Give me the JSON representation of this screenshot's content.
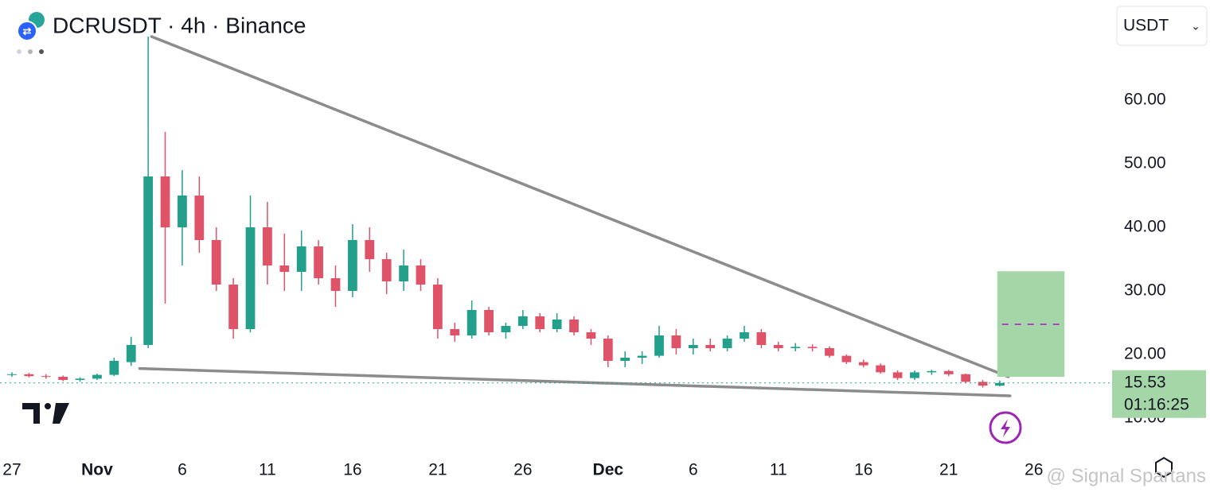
{
  "chart_data": {
    "type": "candlestick",
    "title": "DCRUSDT · 4h · Binance",
    "currency": "USDT",
    "countdown": "01:16:25",
    "watermark": "@ Signal Spartans",
    "up_color": "#22a08b",
    "down_color": "#de5368",
    "x": [
      0,
      1,
      2,
      3,
      4,
      5,
      6,
      7,
      8,
      9,
      10,
      11,
      12,
      13,
      14,
      15,
      16,
      17,
      18,
      19,
      20,
      21,
      22,
      23,
      24,
      25,
      26,
      27,
      28,
      29,
      30,
      31,
      32,
      33,
      34,
      35,
      36,
      37,
      38,
      39,
      40,
      41,
      42,
      43,
      44,
      45,
      46,
      47,
      48,
      49,
      50,
      51,
      52,
      53,
      54,
      55,
      56,
      57,
      58
    ],
    "open": [
      16.8,
      16.9,
      16.6,
      16.5,
      16.0,
      16.2,
      16.8,
      18.8,
      21.5,
      48.0,
      40.0,
      45.0,
      38.0,
      31.0,
      24.0,
      40.0,
      34.0,
      33.0,
      37.0,
      32.0,
      30.0,
      38.0,
      35.0,
      31.5,
      34.0,
      31.0,
      24.0,
      23.0,
      27.0,
      23.5,
      24.5,
      26.0,
      24.0,
      25.5,
      23.5,
      22.5,
      19.0,
      19.5,
      19.8,
      23.0,
      21.0,
      21.5,
      21.0,
      22.5,
      23.5,
      21.5,
      21.0,
      21.2,
      21.0,
      19.8,
      18.8,
      18.3,
      17.2,
      16.3,
      17.2,
      17.4,
      16.9,
      15.7,
      15.1
    ],
    "high": [
      17.2,
      17.1,
      16.9,
      16.7,
      16.4,
      17.0,
      19.5,
      22.8,
      70.0,
      55.0,
      49.0,
      48.0,
      40.0,
      32.0,
      45.0,
      44.0,
      39.0,
      39.5,
      38.0,
      34.0,
      40.5,
      40.0,
      36.0,
      36.5,
      35.0,
      32.0,
      25.0,
      28.5,
      27.5,
      25.0,
      27.0,
      26.5,
      26.5,
      26.0,
      24.0,
      23.0,
      20.5,
      20.5,
      24.5,
      24.0,
      22.5,
      22.5,
      23.0,
      24.5,
      24.0,
      22.0,
      21.8,
      21.6,
      21.3,
      20.0,
      19.2,
      18.6,
      17.5,
      17.5,
      17.6,
      17.6,
      17.0,
      16.0,
      15.9
    ],
    "low": [
      16.5,
      16.4,
      16.2,
      15.8,
      15.7,
      16.0,
      16.6,
      18.2,
      21.0,
      28.0,
      34.0,
      36.0,
      30.0,
      22.5,
      23.5,
      31.0,
      30.0,
      30.0,
      31.0,
      27.5,
      29.0,
      33.0,
      29.5,
      30.0,
      30.0,
      22.5,
      22.0,
      22.5,
      23.0,
      22.5,
      24.0,
      23.5,
      23.5,
      23.0,
      21.5,
      18.0,
      18.0,
      18.5,
      19.5,
      20.0,
      20.0,
      20.5,
      20.5,
      22.0,
      21.0,
      20.5,
      20.5,
      20.5,
      19.5,
      18.5,
      18.0,
      17.0,
      16.0,
      16.0,
      16.8,
      16.6,
      15.5,
      14.8,
      15.0
    ],
    "close": [
      16.9,
      16.6,
      16.5,
      16.0,
      16.2,
      16.8,
      19.0,
      21.5,
      48.0,
      40.0,
      45.0,
      38.0,
      31.0,
      24.0,
      40.0,
      34.0,
      33.0,
      37.0,
      32.0,
      30.0,
      38.0,
      35.0,
      31.5,
      34.0,
      31.0,
      24.0,
      23.0,
      27.0,
      23.5,
      24.5,
      26.0,
      24.0,
      25.5,
      23.5,
      22.5,
      19.0,
      19.5,
      19.8,
      23.0,
      21.0,
      21.5,
      21.0,
      22.5,
      23.5,
      21.5,
      21.0,
      21.2,
      21.0,
      19.8,
      18.8,
      18.3,
      17.2,
      16.3,
      17.2,
      17.4,
      16.9,
      15.7,
      15.1,
      15.53
    ],
    "xlim": [
      -0.7,
      64.5
    ],
    "xticks": [
      {
        "value": 0,
        "label": "27"
      },
      {
        "value": 5,
        "label": "Nov"
      },
      {
        "value": 10,
        "label": "6"
      },
      {
        "value": 15,
        "label": "11"
      },
      {
        "value": 20,
        "label": "16"
      },
      {
        "value": 25,
        "label": "21"
      },
      {
        "value": 30,
        "label": "26"
      },
      {
        "value": 35,
        "label": "Dec"
      },
      {
        "value": 40,
        "label": "6"
      },
      {
        "value": 45,
        "label": "11"
      },
      {
        "value": 50,
        "label": "16"
      },
      {
        "value": 55,
        "label": "21"
      },
      {
        "value": 60,
        "label": "26"
      }
    ],
    "ylim": [
      4.5,
      75.75
    ],
    "yticks": [
      {
        "value": 10,
        "label": "10.00"
      },
      {
        "value": 20,
        "label": "20.00"
      },
      {
        "value": 30,
        "label": "30.00"
      },
      {
        "value": 40,
        "label": "40.00"
      },
      {
        "value": 50,
        "label": "50.00"
      },
      {
        "value": 60,
        "label": "60.00"
      }
    ],
    "trendlines": [
      {
        "x": [
          8.2,
          58.5
        ],
        "y": [
          70,
          16.5
        ]
      },
      {
        "x": [
          7.5,
          58.6
        ],
        "y": [
          17.8,
          13.5
        ]
      }
    ],
    "target_box": {
      "x": [
        57.85,
        61.8
      ],
      "y": [
        16.5,
        33.1
      ],
      "mid": 24.75
    }
  }
}
